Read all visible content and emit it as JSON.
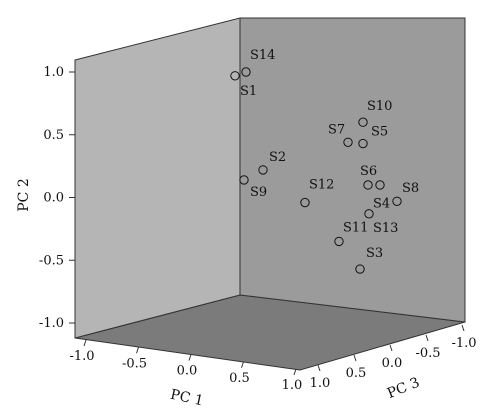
{
  "chart_data": {
    "type": "scatter",
    "projection": "3d",
    "title": "",
    "axes": {
      "pc1": {
        "label": "PC 1",
        "range": [
          -1.0,
          1.0
        ],
        "ticks": [
          "-1.0",
          "-0.5",
          "0.0",
          "0.5",
          "1.0"
        ]
      },
      "pc2": {
        "label": "PC 2",
        "range": [
          -1.0,
          1.0
        ],
        "ticks": [
          "-1.0",
          "-0.5",
          "0.0",
          "0.5",
          "1.0"
        ]
      },
      "pc3": {
        "label": "PC 3",
        "range": [
          -1.0,
          1.0
        ],
        "ticks": [
          "1.0",
          "0.5",
          "0.0",
          "-0.5",
          "-1.0"
        ]
      }
    },
    "points": [
      {
        "label": "S14",
        "pc2": 1.0
      },
      {
        "label": "S1",
        "pc2": 0.97
      },
      {
        "label": "S10",
        "pc2": 0.6
      },
      {
        "label": "S7",
        "pc2": 0.44
      },
      {
        "label": "S5",
        "pc2": 0.43
      },
      {
        "label": "S2",
        "pc2": 0.22
      },
      {
        "label": "S9",
        "pc2": 0.14
      },
      {
        "label": "S6",
        "pc2": 0.1
      },
      {
        "label": "S8",
        "pc2": 0.1
      },
      {
        "label": "S12",
        "pc2": -0.04
      },
      {
        "label": "S4",
        "pc2": -0.03
      },
      {
        "label": "S13",
        "pc2": -0.13
      },
      {
        "label": "S11",
        "pc2": -0.35
      },
      {
        "label": "S3",
        "pc2": -0.57
      }
    ],
    "colors": {
      "back_wall": "#9b9b9b",
      "side_wall": "#b5b5b5",
      "floor": "#7b7b7b",
      "marker_stroke": "#111111"
    }
  }
}
